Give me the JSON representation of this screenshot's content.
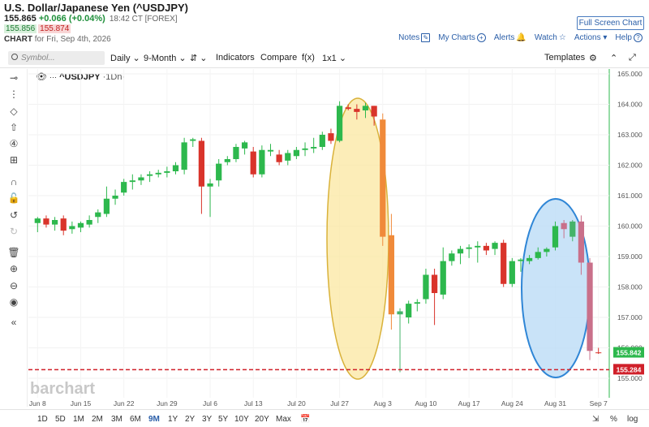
{
  "header": {
    "title": "U.S. Dollar/Japanese Yen (^USDJPY)",
    "price": "155.865",
    "change": "+0.066 (+0.04%)",
    "time": "18:42 CT [FOREX]",
    "bid": "155.856",
    "ask": "155.874",
    "chart_label": "CHART",
    "chart_date": "for Fri, Sep 4th, 2026",
    "fullscreen": "Full Screen Chart",
    "links": [
      "Notes",
      "My Charts",
      "Alerts",
      "Watch",
      "Actions",
      "Help"
    ]
  },
  "toolbar": {
    "search_placeholder": "Symbol...",
    "period": "Daily",
    "range": "9-Month",
    "indicators": "Indicators",
    "compare": "Compare",
    "fx": "f(x)",
    "layout": "1x1",
    "templates": "Templates"
  },
  "legend": {
    "symbol": "^USDJPY",
    "interval": "·1Dn·"
  },
  "watermark": "barchart",
  "footer": {
    "ranges": [
      "1D",
      "5D",
      "1M",
      "2M",
      "3M",
      "6M",
      "9M",
      "1Y",
      "2Y",
      "3Y",
      "5Y",
      "10Y",
      "20Y",
      "Max"
    ],
    "active": "9M",
    "pct": "%",
    "log": "log"
  },
  "colors": {
    "up": "#2db84d",
    "down": "#d9342b",
    "up_hl": "#45b36a",
    "down_hl_yellow": "#f08a3a",
    "down_hl_blue": "#c9708a",
    "ellipse_yellow": "#fbe7a0",
    "ellipse_blue": "#bcdcf6",
    "dashed": "#d0202a"
  },
  "chart_data": {
    "type": "candlestick",
    "ylim": [
      154.7,
      165.1
    ],
    "yticks": [
      155,
      156,
      157,
      158,
      159,
      160,
      161,
      162,
      163,
      164,
      165
    ],
    "xticklabels": [
      "Jun 8",
      "Jun 15",
      "Jun 22",
      "Jun 29",
      "Jul 6",
      "Jul 13",
      "Jul 20",
      "Jul 27",
      "Aug 3",
      "Aug 10",
      "Aug 17",
      "Aug 24",
      "Aug 31",
      "Sep 7"
    ],
    "xstart": "Jun 8",
    "last_price_label": "155.842",
    "reference_label": "155.284",
    "reference_line": 155.284,
    "candles": [
      {
        "d": "Jun 8",
        "o": 160.1,
        "h": 160.3,
        "l": 159.8,
        "c": 160.25
      },
      {
        "d": "Jun 9",
        "o": 160.25,
        "h": 160.35,
        "l": 159.95,
        "c": 160.05
      },
      {
        "d": "Jun 10",
        "o": 160.05,
        "h": 160.3,
        "l": 159.85,
        "c": 160.2
      },
      {
        "d": "Jun 11",
        "o": 160.25,
        "h": 160.35,
        "l": 159.7,
        "c": 159.85
      },
      {
        "d": "Jun 12",
        "o": 159.9,
        "h": 160.15,
        "l": 159.75,
        "c": 160.0
      },
      {
        "d": "Jun 15",
        "o": 159.95,
        "h": 160.15,
        "l": 159.8,
        "c": 160.1
      },
      {
        "d": "Jun 16",
        "o": 160.05,
        "h": 160.35,
        "l": 159.95,
        "c": 160.2
      },
      {
        "d": "Jun 17",
        "o": 160.3,
        "h": 160.55,
        "l": 160.1,
        "c": 160.45
      },
      {
        "d": "Jun 18",
        "o": 160.4,
        "h": 161.3,
        "l": 160.3,
        "c": 160.9
      },
      {
        "d": "Jun 19",
        "o": 160.9,
        "h": 161.2,
        "l": 160.7,
        "c": 161.0
      },
      {
        "d": "Jun 22",
        "o": 161.1,
        "h": 161.55,
        "l": 161.0,
        "c": 161.45
      },
      {
        "d": "Jun 23",
        "o": 161.45,
        "h": 161.7,
        "l": 161.2,
        "c": 161.5
      },
      {
        "d": "Jun 24",
        "o": 161.5,
        "h": 161.7,
        "l": 161.35,
        "c": 161.6
      },
      {
        "d": "Jun 25",
        "o": 161.65,
        "h": 161.8,
        "l": 161.45,
        "c": 161.7
      },
      {
        "d": "Jun 26",
        "o": 161.7,
        "h": 161.85,
        "l": 161.6,
        "c": 161.75
      },
      {
        "d": "Jun 29",
        "o": 161.75,
        "h": 161.95,
        "l": 161.6,
        "c": 161.8
      },
      {
        "d": "Jun 30",
        "o": 161.8,
        "h": 162.1,
        "l": 161.7,
        "c": 162.0
      },
      {
        "d": "Jul 1",
        "o": 161.85,
        "h": 162.9,
        "l": 161.7,
        "c": 162.75
      },
      {
        "d": "Jul 2",
        "o": 162.8,
        "h": 162.9,
        "l": 162.6,
        "c": 162.85
      },
      {
        "d": "Jul 3",
        "o": 162.8,
        "h": 162.9,
        "l": 160.4,
        "c": 161.3
      },
      {
        "d": "Jul 6",
        "o": 161.3,
        "h": 161.55,
        "l": 160.3,
        "c": 161.4
      },
      {
        "d": "Jul 7",
        "o": 161.5,
        "h": 162.2,
        "l": 161.3,
        "c": 162.05
      },
      {
        "d": "Jul 8",
        "o": 162.1,
        "h": 162.3,
        "l": 162.0,
        "c": 162.2
      },
      {
        "d": "Jul 9",
        "o": 162.2,
        "h": 162.7,
        "l": 162.1,
        "c": 162.6
      },
      {
        "d": "Jul 10",
        "o": 162.55,
        "h": 162.8,
        "l": 162.35,
        "c": 162.75
      },
      {
        "d": "Jul 13",
        "o": 162.45,
        "h": 162.6,
        "l": 161.6,
        "c": 161.7
      },
      {
        "d": "Jul 14",
        "o": 161.7,
        "h": 162.65,
        "l": 161.6,
        "c": 162.5
      },
      {
        "d": "Jul 15",
        "o": 162.45,
        "h": 162.7,
        "l": 162.3,
        "c": 162.5
      },
      {
        "d": "Jul 16",
        "o": 162.35,
        "h": 162.5,
        "l": 162.0,
        "c": 162.1
      },
      {
        "d": "Jul 17",
        "o": 162.15,
        "h": 162.5,
        "l": 162.0,
        "c": 162.4
      },
      {
        "d": "Jul 20",
        "o": 162.3,
        "h": 162.6,
        "l": 162.2,
        "c": 162.5
      },
      {
        "d": "Jul 21",
        "o": 162.5,
        "h": 162.75,
        "l": 162.3,
        "c": 162.55
      },
      {
        "d": "Jul 22",
        "o": 162.55,
        "h": 162.9,
        "l": 162.4,
        "c": 162.6
      },
      {
        "d": "Jul 23",
        "o": 162.6,
        "h": 163.1,
        "l": 162.5,
        "c": 163.0
      },
      {
        "d": "Jul 24",
        "o": 163.05,
        "h": 163.2,
        "l": 162.7,
        "c": 162.8
      },
      {
        "d": "Jul 27",
        "o": 162.8,
        "h": 164.1,
        "l": 162.75,
        "c": 163.95
      },
      {
        "d": "Jul 28",
        "o": 163.9,
        "h": 164.0,
        "l": 163.8,
        "c": 163.85
      },
      {
        "d": "Jul 29",
        "o": 163.85,
        "h": 164.0,
        "l": 163.5,
        "c": 163.75
      },
      {
        "d": "Jul 30",
        "o": 163.8,
        "h": 164.05,
        "l": 163.55,
        "c": 163.95
      },
      {
        "d": "Jul 31",
        "o": 163.95,
        "h": 163.95,
        "l": 163.3,
        "c": 163.6
      },
      {
        "d": "Aug 3",
        "o": 163.5,
        "h": 163.7,
        "l": 159.35,
        "c": 159.65
      },
      {
        "d": "Aug 4",
        "o": 159.7,
        "h": 160.4,
        "l": 156.6,
        "c": 157.1
      },
      {
        "d": "Aug 5",
        "o": 157.1,
        "h": 157.3,
        "l": 155.2,
        "c": 157.2
      },
      {
        "d": "Aug 6",
        "o": 157.0,
        "h": 157.55,
        "l": 156.8,
        "c": 157.45
      },
      {
        "d": "Aug 7",
        "o": 157.45,
        "h": 157.6,
        "l": 157.2,
        "c": 157.5
      },
      {
        "d": "Aug 10",
        "o": 157.6,
        "h": 158.6,
        "l": 157.45,
        "c": 158.4
      },
      {
        "d": "Aug 11",
        "o": 158.4,
        "h": 158.6,
        "l": 156.75,
        "c": 157.8
      },
      {
        "d": "Aug 12",
        "o": 157.75,
        "h": 159.3,
        "l": 157.6,
        "c": 158.85
      },
      {
        "d": "Aug 13",
        "o": 158.85,
        "h": 159.2,
        "l": 158.7,
        "c": 159.1
      },
      {
        "d": "Aug 14",
        "o": 159.1,
        "h": 159.35,
        "l": 158.75,
        "c": 159.25
      },
      {
        "d": "Aug 17",
        "o": 159.25,
        "h": 159.4,
        "l": 158.95,
        "c": 159.3
      },
      {
        "d": "Aug 18",
        "o": 159.3,
        "h": 159.5,
        "l": 158.8,
        "c": 159.35
      },
      {
        "d": "Aug 19",
        "o": 159.35,
        "h": 159.45,
        "l": 159.05,
        "c": 159.2
      },
      {
        "d": "Aug 20",
        "o": 159.25,
        "h": 159.5,
        "l": 159.05,
        "c": 159.45
      },
      {
        "d": "Aug 21",
        "o": 159.45,
        "h": 159.55,
        "l": 158.0,
        "c": 158.1
      },
      {
        "d": "Aug 24",
        "o": 158.1,
        "h": 158.95,
        "l": 158.0,
        "c": 158.85
      },
      {
        "d": "Aug 25",
        "o": 158.85,
        "h": 158.95,
        "l": 158.5,
        "c": 158.9
      },
      {
        "d": "Aug 26",
        "o": 158.85,
        "h": 159.05,
        "l": 158.75,
        "c": 158.95
      },
      {
        "d": "Aug 27",
        "o": 158.95,
        "h": 159.3,
        "l": 158.9,
        "c": 159.15
      },
      {
        "d": "Aug 28",
        "o": 159.15,
        "h": 159.3,
        "l": 159.0,
        "c": 159.25
      },
      {
        "d": "Aug 31",
        "o": 159.3,
        "h": 160.15,
        "l": 159.2,
        "c": 160.0
      },
      {
        "d": "Sep 1",
        "o": 160.1,
        "h": 160.2,
        "l": 159.6,
        "c": 159.9
      },
      {
        "d": "Sep 2",
        "o": 159.65,
        "h": 160.2,
        "l": 159.5,
        "c": 160.15
      },
      {
        "d": "Sep 3",
        "o": 160.15,
        "h": 160.35,
        "l": 158.4,
        "c": 158.8
      },
      {
        "d": "Sep 4",
        "o": 158.8,
        "h": 158.95,
        "l": 155.6,
        "c": 155.9
      },
      {
        "d": "Sep 7",
        "o": 155.85,
        "h": 156.0,
        "l": 155.8,
        "c": 155.84
      }
    ]
  }
}
